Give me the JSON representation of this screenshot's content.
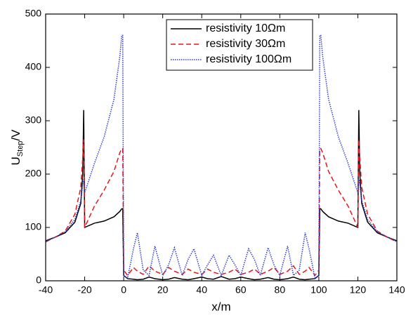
{
  "chart_data": {
    "type": "line",
    "x_label": "x/m",
    "y_label": {
      "main": "U",
      "sub": "Step",
      "unit": "/V"
    },
    "x": [
      -40,
      -35,
      -30,
      -25,
      -22,
      -21,
      -20.5,
      -20,
      -15,
      -10,
      -5,
      -2,
      -1,
      -0.5,
      0,
      2,
      5,
      7,
      10,
      13,
      16,
      20,
      23,
      26,
      30,
      33,
      36,
      40,
      43,
      46,
      50,
      54,
      57,
      60,
      64,
      67,
      70,
      74,
      77,
      80,
      84,
      87,
      90,
      93,
      95,
      98,
      100,
      100.5,
      101,
      102,
      105,
      110,
      115,
      120,
      120.5,
      121,
      122,
      125,
      130,
      135,
      140
    ],
    "series": [
      {
        "name": "resistivity 10Ωm",
        "color": "#000000",
        "dash": "solid",
        "values": [
          75,
          82,
          90,
          110,
          145,
          200,
          320,
          100,
          108,
          112,
          120,
          130,
          135,
          135,
          10,
          4,
          3,
          2,
          3,
          7,
          4,
          2,
          3,
          6,
          3,
          2,
          4,
          7,
          4,
          3,
          8,
          3,
          4,
          7,
          4,
          2,
          3,
          6,
          3,
          2,
          4,
          7,
          3,
          2,
          3,
          4,
          10,
          135,
          135,
          130,
          120,
          112,
          108,
          100,
          320,
          200,
          145,
          110,
          90,
          82,
          75
        ]
      },
      {
        "name": "resistivity 30Ωm",
        "color": "#e8141b",
        "dash": "dashed",
        "values": [
          73,
          82,
          93,
          125,
          175,
          230,
          265,
          100,
          140,
          170,
          205,
          240,
          248,
          248,
          20,
          10,
          25,
          18,
          12,
          28,
          18,
          12,
          25,
          18,
          12,
          22,
          16,
          12,
          22,
          16,
          12,
          16,
          22,
          12,
          16,
          22,
          12,
          18,
          25,
          12,
          18,
          28,
          12,
          18,
          25,
          10,
          20,
          248,
          248,
          240,
          205,
          170,
          140,
          100,
          265,
          230,
          175,
          125,
          93,
          82,
          73
        ]
      },
      {
        "name": "resistivity 100Ωm",
        "color": "#2b3cd6",
        "dash": "dotted",
        "values": [
          73,
          82,
          92,
          115,
          150,
          180,
          190,
          165,
          220,
          270,
          340,
          420,
          460,
          460,
          10,
          5,
          60,
          90,
          20,
          10,
          65,
          10,
          30,
          62,
          10,
          40,
          60,
          10,
          30,
          48,
          10,
          48,
          30,
          10,
          60,
          40,
          10,
          62,
          30,
          10,
          65,
          10,
          20,
          90,
          60,
          5,
          10,
          460,
          460,
          420,
          340,
          270,
          220,
          165,
          190,
          180,
          150,
          115,
          92,
          82,
          73
        ]
      }
    ],
    "xlim": [
      -40,
      140
    ],
    "xticks": [
      -40,
      -20,
      0,
      20,
      40,
      60,
      80,
      100,
      120,
      140
    ],
    "ylim": [
      0,
      500
    ],
    "yticks": [
      0,
      100,
      200,
      300,
      400,
      500
    ],
    "legend": "top-center"
  }
}
